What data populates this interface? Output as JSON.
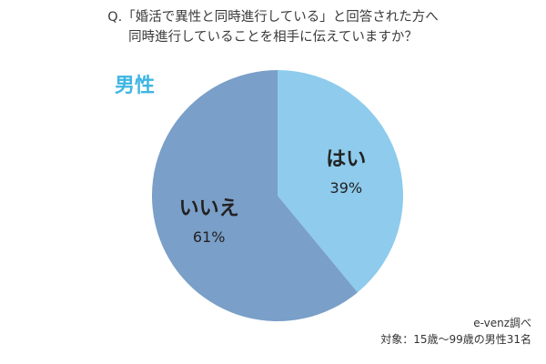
{
  "title": {
    "line1": "Q.「婚活で異性と同時進行している」と回答された方へ",
    "line2": "同時進行していることを相手に伝えていますか？"
  },
  "gender_label": "男性",
  "credit": {
    "source": "e-venz調べ",
    "target": "対象：15歳〜99歳の男性31名"
  },
  "colors": {
    "yes": "#8ecbec",
    "no": "#7a9fc8",
    "accent": "#3fb6e4"
  },
  "chart_data": {
    "type": "pie",
    "slices": [
      {
        "label": "はい",
        "value": 39,
        "display": "39%",
        "color": "#8ecbec"
      },
      {
        "label": "いいえ",
        "value": 61,
        "display": "61%",
        "color": "#7a9fc8"
      }
    ]
  }
}
